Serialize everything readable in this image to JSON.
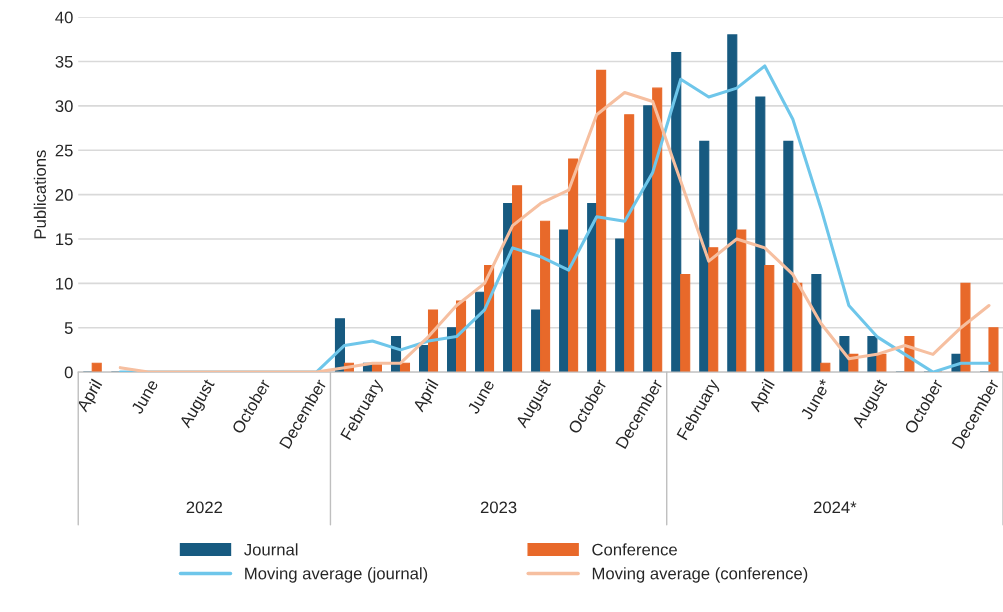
{
  "chart_data": {
    "type": "bar",
    "ylabel": "Publications",
    "categories": [
      "April",
      null,
      "June",
      null,
      "August",
      null,
      "October",
      null,
      "December",
      null,
      "February",
      null,
      "April",
      null,
      "June",
      null,
      "August",
      null,
      "October",
      null,
      "December",
      null,
      "February",
      null,
      "April",
      null,
      "June*",
      null,
      "August",
      null,
      "October",
      null,
      "December"
    ],
    "series": [
      {
        "name": "Journal",
        "color": "#175a80",
        "values": [
          0,
          0,
          0,
          0,
          0,
          0,
          0,
          0,
          0,
          6,
          1,
          4,
          3,
          5,
          9,
          19,
          7,
          16,
          19,
          15,
          30,
          36,
          26,
          38,
          31,
          26,
          11,
          4,
          4,
          0,
          0,
          2,
          0
        ]
      },
      {
        "name": "Conference",
        "color": "#e8692a",
        "values": [
          1,
          0,
          0,
          0,
          0,
          0,
          0,
          0,
          0,
          1,
          1,
          1,
          7,
          8,
          12,
          21,
          17,
          24,
          34,
          29,
          32,
          11,
          14,
          16,
          12,
          10,
          1,
          2,
          2,
          4,
          0,
          10,
          5
        ]
      },
      {
        "name": "Moving average (journal)",
        "type": "line",
        "color": "#6ec6ea",
        "values": [
          null,
          0,
          0,
          0,
          0,
          0,
          0,
          0,
          0,
          3,
          3.5,
          2.5,
          3.5,
          4,
          7,
          14,
          13,
          11.5,
          17.5,
          17,
          22.5,
          33,
          31,
          32,
          34.5,
          28.5,
          18.5,
          7.5,
          4,
          2,
          0,
          1,
          1
        ]
      },
      {
        "name": "Moving average (conference)",
        "type": "line",
        "color": "#f6bfa0",
        "values": [
          null,
          0.5,
          0,
          0,
          0,
          0,
          0,
          0,
          0,
          0.5,
          1,
          1,
          4,
          7.5,
          10,
          16.5,
          19,
          20.5,
          29,
          31.5,
          30.5,
          21.5,
          12.5,
          15,
          14,
          11,
          5.5,
          1.5,
          2,
          3,
          2,
          5,
          7.5
        ]
      }
    ],
    "annotations": [
      "2022",
      "2023",
      "2024*"
    ],
    "ylim": [
      0,
      40
    ],
    "yticks": [
      0,
      5,
      10,
      15,
      20,
      25,
      30,
      35,
      40
    ],
    "grid": "y",
    "legend": "bottom",
    "line_style": "solid",
    "marker": "none"
  }
}
